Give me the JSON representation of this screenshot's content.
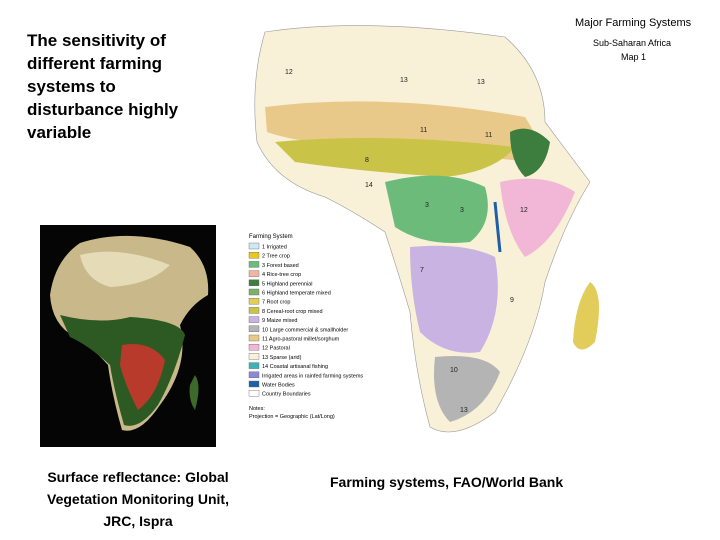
{
  "slide": {
    "heading": [
      "The sensitivity of",
      "different farming",
      "systems to",
      "disturbance highly",
      "variable"
    ],
    "left_caption": [
      "Surface reflectance: Global",
      "Vegetation Monitoring Unit,",
      "JRC, Ispra"
    ],
    "right_caption": "Farming systems, FAO/World Bank",
    "map": {
      "title": "Major Farming Systems",
      "subtitle": "Sub-Saharan Africa",
      "map_number": "Map 1",
      "legend_title": "Farming System",
      "legend": [
        {
          "label": "1  Irrigated",
          "color": "#cfe8f2"
        },
        {
          "label": "2  Tree crop",
          "color": "#e8c81c"
        },
        {
          "label": "3  Forest based",
          "color": "#6dbb7a"
        },
        {
          "label": "4  Rice-tree crop",
          "color": "#f2b5a4"
        },
        {
          "label": "5  Highland perennial",
          "color": "#3d7d3d"
        },
        {
          "label": "6  Highland temperate mixed",
          "color": "#7fb06a"
        },
        {
          "label": "7  Root crop",
          "color": "#e2cd5a"
        },
        {
          "label": "8  Cereal-root crop mixed",
          "color": "#c9c348"
        },
        {
          "label": "9  Maize mixed",
          "color": "#c9b3e2"
        },
        {
          "label": "10  Large commercial & smallholder",
          "color": "#b4b4b4"
        },
        {
          "label": "11  Agro-pastoral millet/sorghum",
          "color": "#e9c98a"
        },
        {
          "label": "12  Pastoral",
          "color": "#f2b6d6"
        },
        {
          "label": "13  Sparse (arid)",
          "color": "#f8f1d8"
        },
        {
          "label": "14  Coastal artisanal fishing",
          "color": "#3fb2b2"
        },
        {
          "label": "Irrigated areas in rainfed farming systems",
          "color": "#8a8ad8"
        },
        {
          "label": "Water Bodies",
          "color": "#1f5fa8"
        },
        {
          "label": "Country Boundaries",
          "color": "#ffffff"
        }
      ],
      "note": "Notes:",
      "projection": "Projection = Geographic (Lat/Long)",
      "region_labels": [
        "12",
        "13",
        "13",
        "11",
        "11",
        "8",
        "3",
        "3",
        "9",
        "7",
        "12",
        "13",
        "14",
        "10"
      ]
    }
  }
}
